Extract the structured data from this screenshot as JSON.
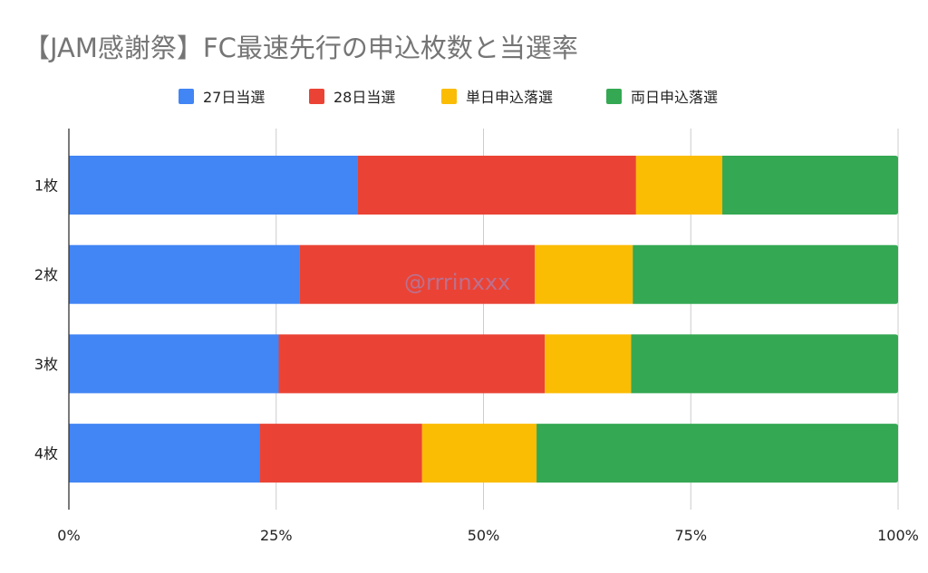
{
  "chart_data": {
    "type": "bar",
    "orientation": "horizontal",
    "stacked": "percent",
    "title": "【JAM感謝祭】FC最速先行の申込枚数と当選率",
    "categories": [
      "1枚",
      "2枚",
      "3枚",
      "4枚"
    ],
    "series": [
      {
        "name": "27日当選",
        "color": "#4285F4",
        "values": [
          34.8,
          27.8,
          25.3,
          23.0
        ]
      },
      {
        "name": "28日当選",
        "color": "#EA4335",
        "values": [
          33.6,
          28.4,
          32.1,
          19.6
        ]
      },
      {
        "name": "単日申込落選",
        "color": "#FBBC04",
        "values": [
          10.4,
          11.8,
          10.4,
          13.8
        ]
      },
      {
        "name": "両日申込落選",
        "color": "#34A853",
        "values": [
          21.2,
          32.0,
          32.2,
          43.6
        ]
      }
    ],
    "xlim": [
      0,
      100
    ],
    "x_ticks": [
      "0%",
      "25%",
      "50%",
      "75%",
      "100%"
    ],
    "grid": "vertical",
    "legend_position": "top"
  },
  "watermark": "@rrrinxxx"
}
